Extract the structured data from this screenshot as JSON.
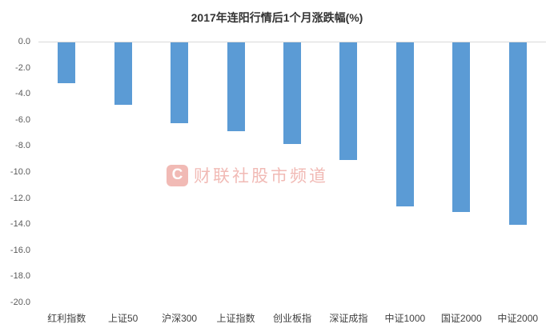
{
  "title": "2017年连阳行情后1个月涨跌幅(%)",
  "watermark": {
    "icon_letter": "C",
    "text": "财联社股市频道",
    "color": "#f0b3ae"
  },
  "chart_data": {
    "type": "bar",
    "title": "2017年连阳行情后1个月涨跌幅(%)",
    "categories": [
      "红利指数",
      "上证50",
      "沪深300",
      "上证指数",
      "创业板指",
      "深证成指",
      "中证1000",
      "国证2000",
      "中证2000"
    ],
    "values": [
      -3.1,
      -4.8,
      -6.2,
      -6.8,
      -7.8,
      -9.0,
      -12.6,
      -13.0,
      -14.0
    ],
    "xlabel": "",
    "ylabel": "",
    "ylim": [
      -20,
      0
    ],
    "yticks": [
      "0.0",
      "-2.0",
      "-4.0",
      "-6.0",
      "-8.0",
      "-10.0",
      "-12.0",
      "-14.0",
      "-16.0",
      "-18.0",
      "-20.0"
    ],
    "bar_color": "#5B9BD5",
    "grid": false,
    "legend": false
  }
}
